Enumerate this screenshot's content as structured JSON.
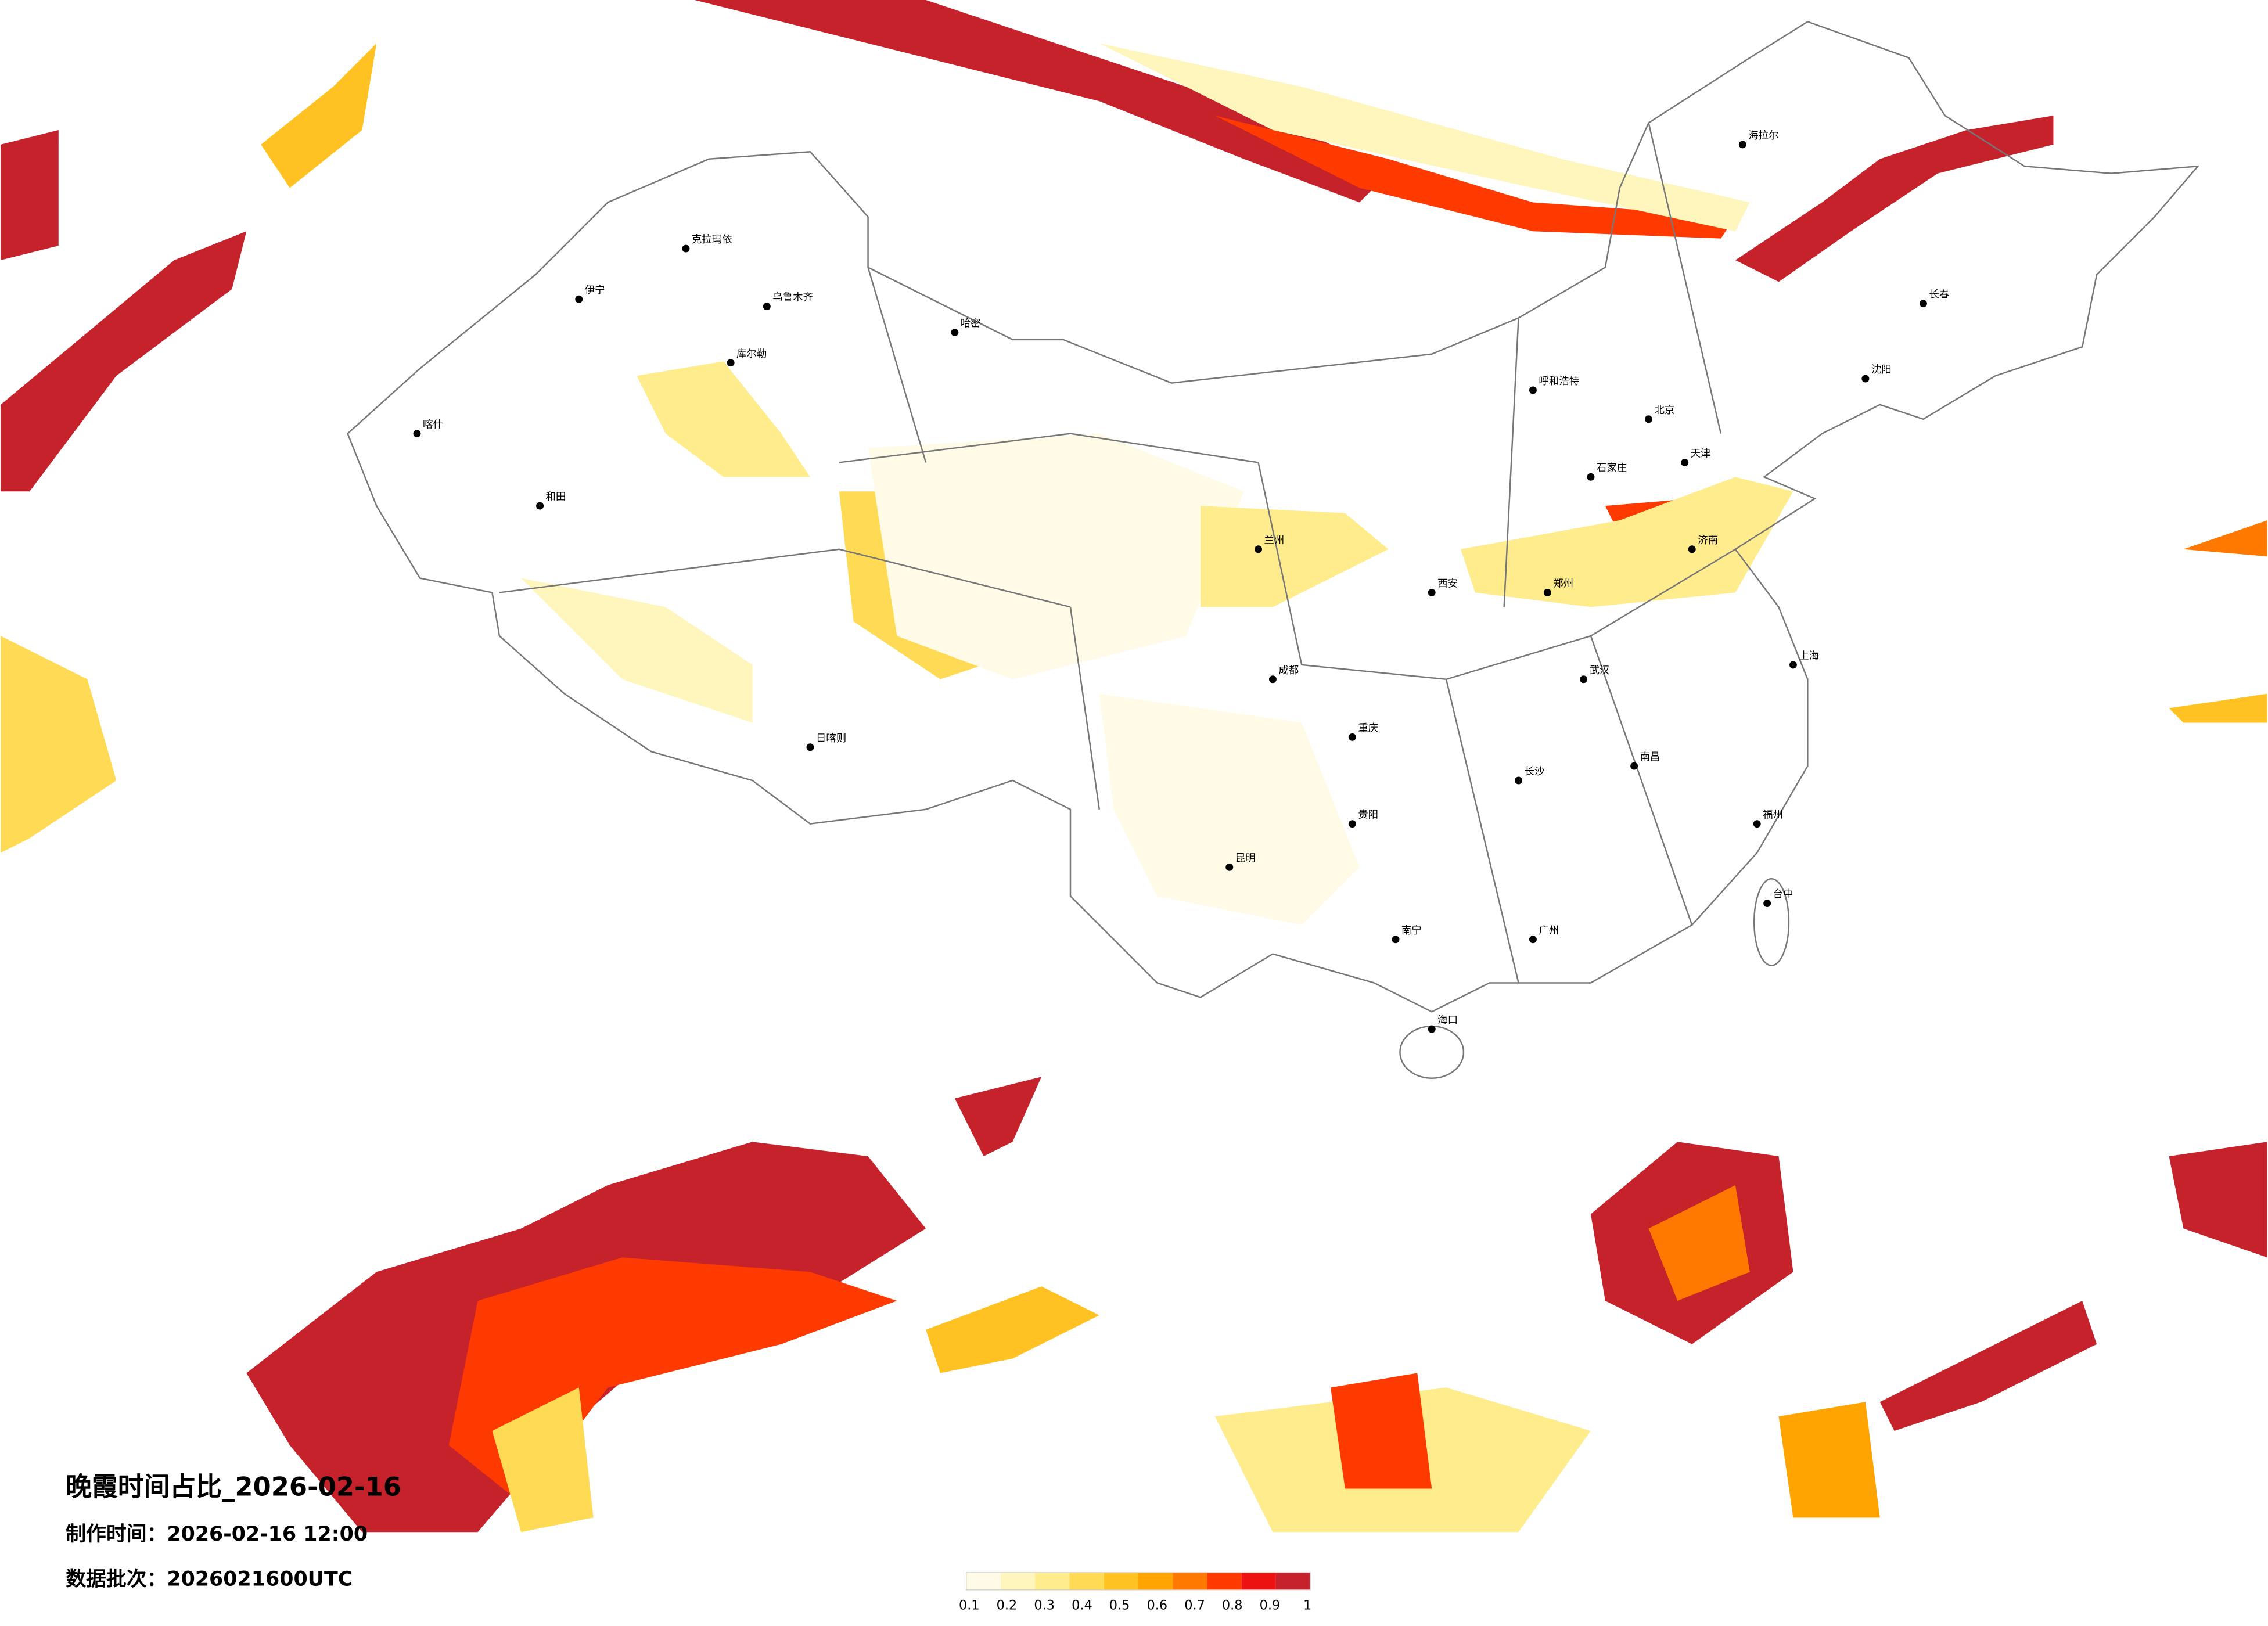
{
  "map": {
    "title": "晚霞时间占比_2026-02-16",
    "made_time": "制作时间：2026-02-16 12:00",
    "data_batch": "数据批次：2026021600UTC",
    "legend": {
      "colors": [
        "#fffbe6",
        "#fff6bd",
        "#ffec8c",
        "#ffdb55",
        "#ffc222",
        "#ffa400",
        "#ff7800",
        "#ff3a00",
        "#ec1212",
        "#c6222c"
      ],
      "ticks": [
        0.1,
        0.2,
        0.3,
        0.4,
        0.5,
        0.6,
        0.7,
        0.8,
        0.9,
        1
      ]
    },
    "cities": [
      "克拉玛依",
      "伊宁",
      "喀什",
      "和田",
      "库尔勒",
      "乌鲁木齐",
      "哈密",
      "日喀则",
      "海拉尔",
      "长春",
      "沈阳",
      "北京",
      "天津",
      "石家庄",
      "济南",
      "郑州",
      "西安",
      "兰州",
      "成都",
      "重庆",
      "贵阳",
      "昆明",
      "南宁",
      "广州",
      "海口",
      "长沙",
      "武汉",
      "南昌",
      "福州",
      "上海",
      "台中",
      "呼和浩特"
    ]
  }
}
